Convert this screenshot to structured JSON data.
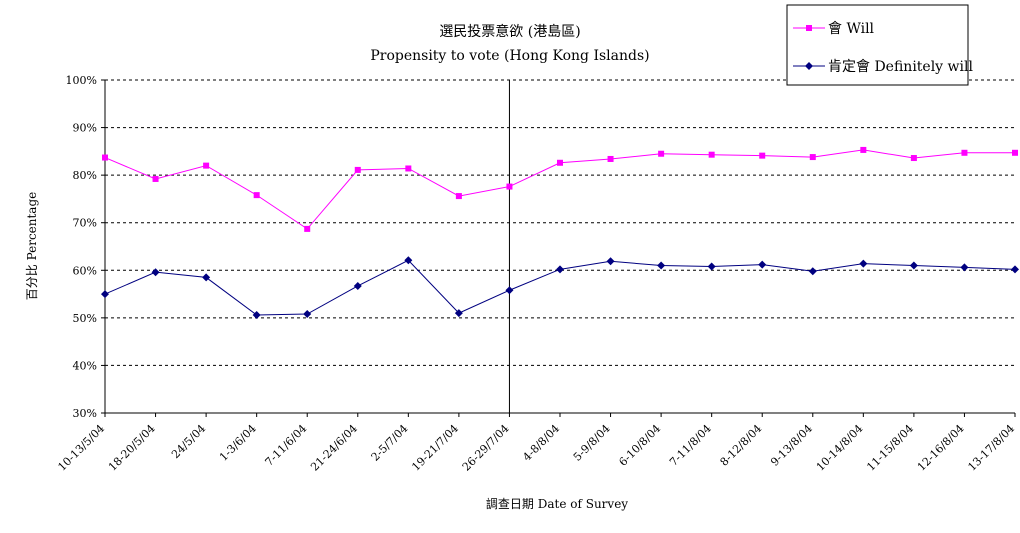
{
  "chart_data": {
    "type": "line",
    "title": "選民投票意欲 (港島區)",
    "subtitle": "Propensity to vote (Hong Kong Islands)",
    "xlabel": "調查日期 Date of Survey",
    "ylabel": "百分比 Percentage",
    "ylim": [
      30,
      100
    ],
    "yticks": [
      "30%",
      "40%",
      "50%",
      "60%",
      "70%",
      "80%",
      "90%",
      "100%"
    ],
    "grid": "horizontal dashed",
    "legend_position": "top-right",
    "categories": [
      "10-13/5/04",
      "18-20/5/04",
      "24/5/04",
      "1-3/6/04",
      "7-11/6/04",
      "21-24/6/04",
      "2-5/7/04",
      "19-21/7/04",
      "26-29/7/04",
      "4-8/8/04",
      "5-9/8/04",
      "6-10/8/04",
      "7-11/8/04",
      "8-12/8/04",
      "9-13/8/04",
      "10-14/8/04",
      "11-15/8/04",
      "12-16/8/04",
      "13-17/8/04"
    ],
    "series": [
      {
        "name": "會 Will",
        "color": "#ff00ff",
        "marker": "square",
        "values": [
          83.7,
          79.2,
          82.0,
          75.8,
          68.7,
          81.1,
          81.4,
          75.6,
          77.6,
          82.6,
          83.4,
          84.5,
          84.3,
          84.1,
          83.8,
          85.3,
          83.6,
          84.7,
          84.7
        ]
      },
      {
        "name": "肯定會 Definitely will",
        "color": "#000080",
        "marker": "diamond",
        "values": [
          55.0,
          59.6,
          58.5,
          50.6,
          50.8,
          56.7,
          62.1,
          51.0,
          55.8,
          60.2,
          61.9,
          61.0,
          60.8,
          61.2,
          59.8,
          61.4,
          61.0,
          60.6,
          60.2
        ]
      }
    ],
    "vertical_marker_after": "26-29/7/04"
  }
}
